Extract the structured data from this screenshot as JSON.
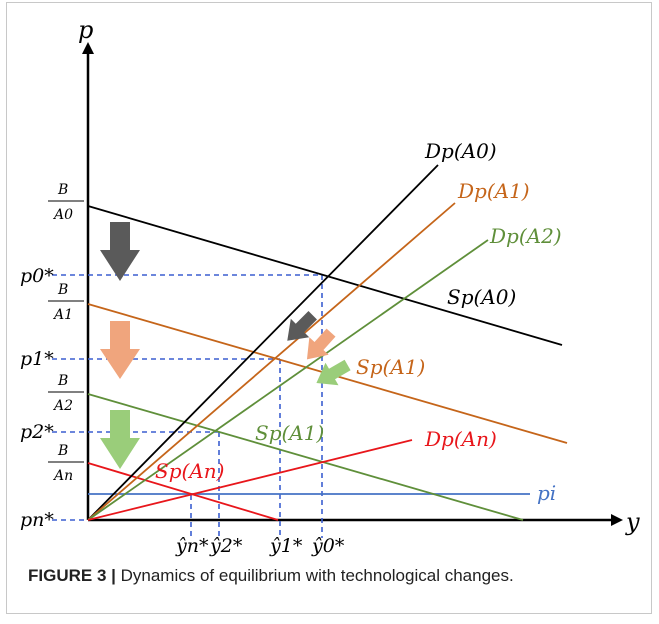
{
  "axes": {
    "y_axis_label": "p",
    "x_axis_label": "y"
  },
  "price_labels": {
    "B_A0": {
      "num": "B",
      "den": "A0"
    },
    "p0": "p0*",
    "B_A1": {
      "num": "B",
      "den": "A1"
    },
    "p1": "p1*",
    "B_A2": {
      "num": "B",
      "den": "A2"
    },
    "p2": "p2*",
    "B_An": {
      "num": "B",
      "den": "An"
    },
    "pn": "pn*"
  },
  "quantity_labels": {
    "yn": "ŷn*",
    "y2": "ŷ2*",
    "y1": "ŷ1*",
    "y0": "ŷ0*"
  },
  "curve_labels": {
    "D_A0": "Dp(A0)",
    "D_A1": "Dp(A1)",
    "D_A2": "Dp(A2)",
    "D_An": "Dp(An)",
    "S_A0": "Sp(A0)",
    "S_A1_orange": "Sp(A1)",
    "S_A1_green": "Sp(A1)",
    "S_An": "Sp(An)",
    "p_i": "pi"
  },
  "colors": {
    "A0": "#000000",
    "A1": "#c5651a",
    "A2": "#5f8f3a",
    "An": "#e8161b",
    "p_i": "#4472c4",
    "guide": "#3b5fd0",
    "arrow_gray": "#5a5a5a",
    "arrow_orange": "#f0a57d",
    "arrow_green": "#9acd7a"
  },
  "caption": {
    "label": "FIGURE 3 |",
    "text": " Dynamics of equilibrium with technological changes."
  }
}
